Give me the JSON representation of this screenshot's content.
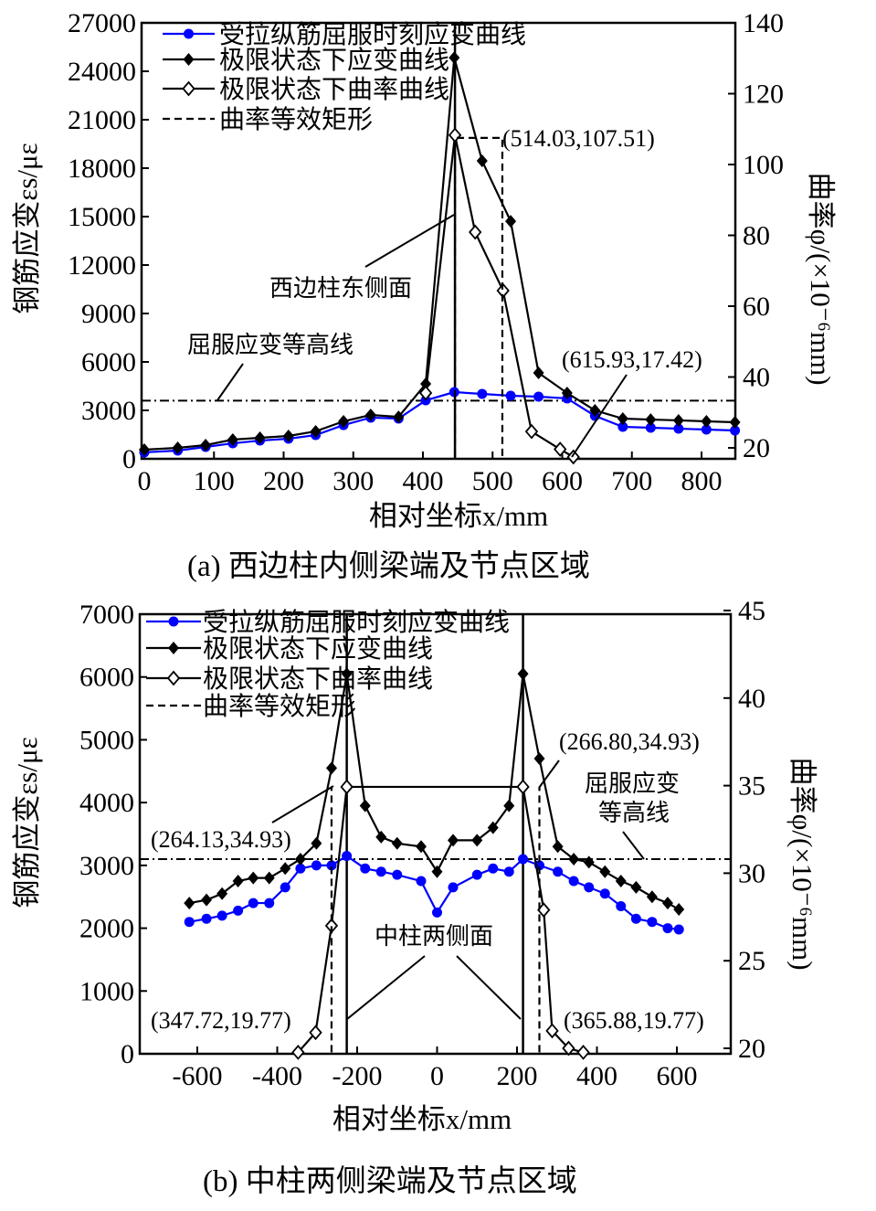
{
  "chart_data": [
    {
      "type": "line",
      "title": "(a)  西边柱内侧梁端及节点区域",
      "xlabel": "相对坐标x/mm",
      "ylabel": "钢筋应变εs/με",
      "ylabel_right": "曲率φ/(×10⁻⁶mm)",
      "xlim": [
        0,
        850
      ],
      "ylim": [
        0,
        27000
      ],
      "ylim_right": [
        20,
        140
      ],
      "x_ticks": [
        "0",
        "100",
        "200",
        "300",
        "400",
        "500",
        "600",
        "700",
        "800"
      ],
      "x_tick_values": [
        0,
        100,
        200,
        300,
        400,
        500,
        600,
        700,
        800
      ],
      "y_ticks": [
        "0",
        "3000",
        "6000",
        "9000",
        "12000",
        "15000",
        "18000",
        "21000",
        "24000",
        "27000"
      ],
      "y_tick_values": [
        0,
        3000,
        6000,
        9000,
        12000,
        15000,
        18000,
        21000,
        24000,
        27000
      ],
      "y_right_ticks": [
        "20",
        "40",
        "60",
        "80",
        "100",
        "120",
        "140"
      ],
      "y_right_tick_values": [
        20,
        40,
        60,
        80,
        100,
        120,
        140
      ],
      "legend_position": "top-left",
      "series": [
        {
          "name": "受拉纵筋屈服时刻应变曲线",
          "axis": "left",
          "marker": "circle",
          "color": "#0000ff",
          "x": [
            0,
            48,
            88,
            127,
            166,
            207,
            246,
            286,
            325,
            365,
            404,
            445,
            485,
            526,
            566,
            607,
            647,
            687,
            727,
            767,
            807,
            848
          ],
          "y": [
            400,
            510,
            735,
            960,
            1130,
            1245,
            1470,
            2090,
            2550,
            2490,
            3620,
            4130,
            4020,
            3905,
            3850,
            3740,
            2660,
            1980,
            1925,
            1870,
            1810,
            1755
          ]
        },
        {
          "name": "极限状态下应变曲线",
          "axis": "left",
          "marker": "diamond-filled",
          "color": "#000000",
          "x": [
            0,
            48,
            88,
            127,
            166,
            207,
            246,
            286,
            325,
            365,
            404,
            445,
            485,
            526,
            566,
            607,
            647,
            687,
            727,
            767,
            807,
            848
          ],
          "y": [
            565,
            680,
            850,
            1190,
            1300,
            1415,
            1700,
            2320,
            2715,
            2600,
            4640,
            24840,
            18450,
            14710,
            5320,
            4075,
            3000,
            2490,
            2430,
            2380,
            2320,
            2265
          ]
        },
        {
          "name": "极限状态下曲率曲线",
          "axis": "right",
          "marker": "diamond-open",
          "color": "#000000",
          "x": [
            404,
            446,
            475,
            515,
            556,
            597,
            616
          ],
          "y": [
            35.5,
            108.3,
            80.9,
            64.4,
            24.6,
            19.6,
            17.42
          ]
        },
        {
          "name": "曲率等效矩形",
          "axis": "right",
          "marker": "none",
          "color": "#000000",
          "dash": true,
          "x": [
            446,
            446,
            514.03,
            514.03
          ],
          "y": [
            17.42,
            107.51,
            107.51,
            17.42
          ]
        }
      ],
      "reference_lines": [
        {
          "kind": "horizontal",
          "axis": "left",
          "value": 3600,
          "style": "dash-dot"
        },
        {
          "kind": "vertical",
          "value": 446,
          "style": "solid"
        }
      ],
      "annotations": {
        "peak": "(514.03,107.51)",
        "face": "西边柱东侧面",
        "yield_line": "屈服应变等高线",
        "end": "(615.93,17.42)"
      }
    },
    {
      "type": "line",
      "title": "(b)  中柱两侧梁端及节点区域",
      "xlabel": "相对坐标x/mm",
      "ylabel": "钢筋应变εs/με",
      "ylabel_right": "曲率φ/(×10⁻⁶mm)",
      "xlim": [
        -740,
        740
      ],
      "ylim": [
        0,
        7000
      ],
      "ylim_right": [
        20,
        45
      ],
      "x_ticks": [
        "-600",
        "-400",
        "-200",
        "0",
        "200",
        "400",
        "600"
      ],
      "x_tick_values": [
        -600,
        -400,
        -200,
        0,
        200,
        400,
        600
      ],
      "y_ticks": [
        "0",
        "1000",
        "2000",
        "3000",
        "4000",
        "5000",
        "6000",
        "7000"
      ],
      "y_tick_values": [
        0,
        1000,
        2000,
        3000,
        4000,
        5000,
        6000,
        7000
      ],
      "y_right_ticks": [
        "20",
        "25",
        "30",
        "35",
        "40",
        "45"
      ],
      "y_right_tick_values": [
        20,
        25,
        30,
        35,
        40,
        45
      ],
      "legend_position": "top-left",
      "series": [
        {
          "name": "受拉纵筋屈服时刻应变曲线",
          "axis": "left",
          "marker": "circle",
          "color": "#0000ff",
          "x": [
            -620,
            -577,
            -538,
            -498,
            -460,
            -420,
            -380,
            -342,
            -302,
            -264,
            -226,
            -180,
            -140,
            -100,
            -40,
            0,
            40,
            100,
            140,
            180,
            215,
            256,
            302,
            342,
            380,
            420,
            460,
            498,
            538,
            577,
            605
          ],
          "y": [
            2100,
            2150,
            2200,
            2280,
            2400,
            2400,
            2650,
            2950,
            3000,
            3000,
            3150,
            2950,
            2900,
            2850,
            2750,
            2250,
            2650,
            2850,
            2950,
            2900,
            3100,
            3000,
            2900,
            2750,
            2650,
            2550,
            2350,
            2150,
            2100,
            2000,
            1980
          ]
        },
        {
          "name": "极限状态下应变曲线",
          "axis": "left",
          "marker": "diamond-filled",
          "color": "#000000",
          "x": [
            -620,
            -577,
            -538,
            -498,
            -460,
            -420,
            -380,
            -342,
            -302,
            -264,
            -226,
            -180,
            -140,
            -100,
            -40,
            0,
            40,
            100,
            140,
            180,
            215,
            256,
            302,
            342,
            380,
            420,
            460,
            498,
            538,
            577,
            605
          ],
          "y": [
            2400,
            2450,
            2550,
            2750,
            2800,
            2800,
            2950,
            3100,
            3350,
            4550,
            6050,
            3950,
            3450,
            3350,
            3300,
            2900,
            3400,
            3400,
            3600,
            3950,
            6050,
            4700,
            3300,
            3100,
            3050,
            2900,
            2750,
            2650,
            2500,
            2400,
            2300
          ]
        },
        {
          "name": "极限状态下曲率曲线",
          "axis": "right",
          "marker": "diamond-open",
          "color": "#000000",
          "x": [
            -347.72,
            -304,
            -264.13,
            -226,
            215,
            266.8,
            288,
            329,
            365.88
          ],
          "y": [
            19.77,
            20.9,
            27.0,
            34.93,
            34.93,
            27.9,
            21.0,
            20.0,
            19.77
          ]
        },
        {
          "name": "曲率等效矩形",
          "axis": "right",
          "marker": "none",
          "color": "#000000",
          "dash": true,
          "x": [
            -264.13,
            -264.13
          ],
          "y": [
            19.77,
            34.93
          ]
        },
        {
          "name": "曲率等效矩形",
          "axis": "right",
          "marker": "none",
          "color": "#000000",
          "dash": true,
          "x": [
            256,
            256
          ],
          "y": [
            19.77,
            34.93
          ]
        }
      ],
      "reference_lines": [
        {
          "kind": "horizontal",
          "axis": "left",
          "value": 3100,
          "style": "dash-dot"
        },
        {
          "kind": "vertical",
          "value": -226,
          "style": "solid"
        },
        {
          "kind": "vertical",
          "value": 215,
          "style": "solid"
        }
      ],
      "annotations": {
        "left_peak": "(264.13,34.93)",
        "right_peak": "(266.80,34.93)",
        "yield_line_1": "屈服应变",
        "yield_line_2": "等高线",
        "face": "中柱两侧面",
        "left_end": "(347.72,19.77)",
        "right_end": "(365.88,19.77)"
      }
    }
  ]
}
